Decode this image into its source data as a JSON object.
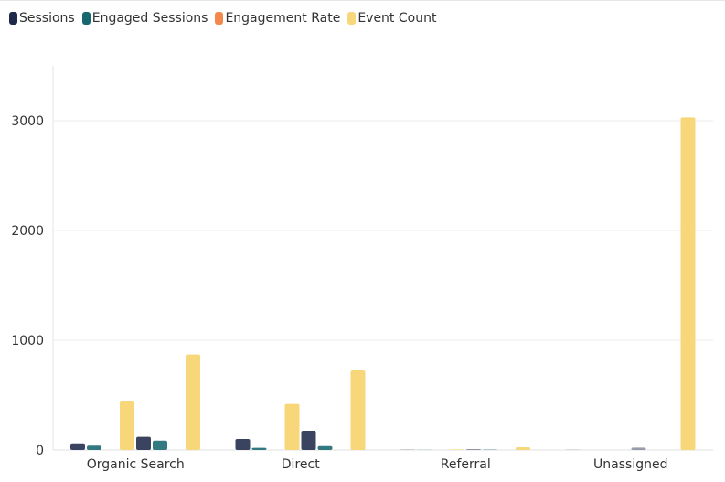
{
  "legend": {
    "items": [
      {
        "label": "Sessions",
        "color": "#1f2a4a"
      },
      {
        "label": "Engaged Sessions",
        "color": "#17676f"
      },
      {
        "label": "Engagement Rate",
        "color": "#f2894a"
      },
      {
        "label": "Event Count",
        "color": "#f7d779"
      }
    ]
  },
  "chart_data": {
    "type": "bar",
    "categories": [
      "Organic Search",
      "Direct",
      "Referral",
      "Unassigned"
    ],
    "ylim": [
      0,
      3500
    ],
    "yticks": [
      0,
      1000,
      2000,
      3000
    ],
    "grid": true,
    "legend_position": "top-left",
    "bar_groups": [
      {
        "category": "Organic Search",
        "bars": [
          {
            "series": "Sessions",
            "value": 60
          },
          {
            "series": "Engaged Sessions",
            "value": 40
          },
          {
            "series": "Engagement Rate",
            "value": 0
          },
          {
            "series": "Event Count",
            "value": 450
          },
          {
            "series": "Sessions",
            "value": 120
          },
          {
            "series": "Engaged Sessions",
            "value": 85
          },
          {
            "series": "Engagement Rate",
            "value": 0
          },
          {
            "series": "Event Count",
            "value": 870
          }
        ]
      },
      {
        "category": "Direct",
        "bars": [
          {
            "series": "Sessions",
            "value": 100
          },
          {
            "series": "Engaged Sessions",
            "value": 20
          },
          {
            "series": "Engagement Rate",
            "value": 0
          },
          {
            "series": "Event Count",
            "value": 420
          },
          {
            "series": "Sessions",
            "value": 175
          },
          {
            "series": "Engaged Sessions",
            "value": 35
          },
          {
            "series": "Engagement Rate",
            "value": 0
          },
          {
            "series": "Event Count",
            "value": 725
          }
        ]
      },
      {
        "category": "Referral",
        "bars": [
          {
            "series": "Sessions",
            "value": 3
          },
          {
            "series": "Engaged Sessions",
            "value": 2
          },
          {
            "series": "Engagement Rate",
            "value": 0
          },
          {
            "series": "Event Count",
            "value": 5
          },
          {
            "series": "Sessions",
            "value": 8
          },
          {
            "series": "Engaged Sessions",
            "value": 5
          },
          {
            "series": "Engagement Rate",
            "value": 0
          },
          {
            "series": "Event Count",
            "value": 25
          }
        ]
      },
      {
        "category": "Unassigned",
        "bars": [
          {
            "series": "Sessions",
            "value": 2
          },
          {
            "series": "Engaged Sessions",
            "value": 0
          },
          {
            "series": "Engagement Rate",
            "value": 0
          },
          {
            "series": "Event Count",
            "value": 0
          },
          {
            "series": "Sessions",
            "value": 22
          },
          {
            "series": "Engaged Sessions",
            "value": 0
          },
          {
            "series": "Engagement Rate",
            "value": 0
          },
          {
            "series": "Event Count",
            "value": 3030
          }
        ]
      }
    ]
  }
}
